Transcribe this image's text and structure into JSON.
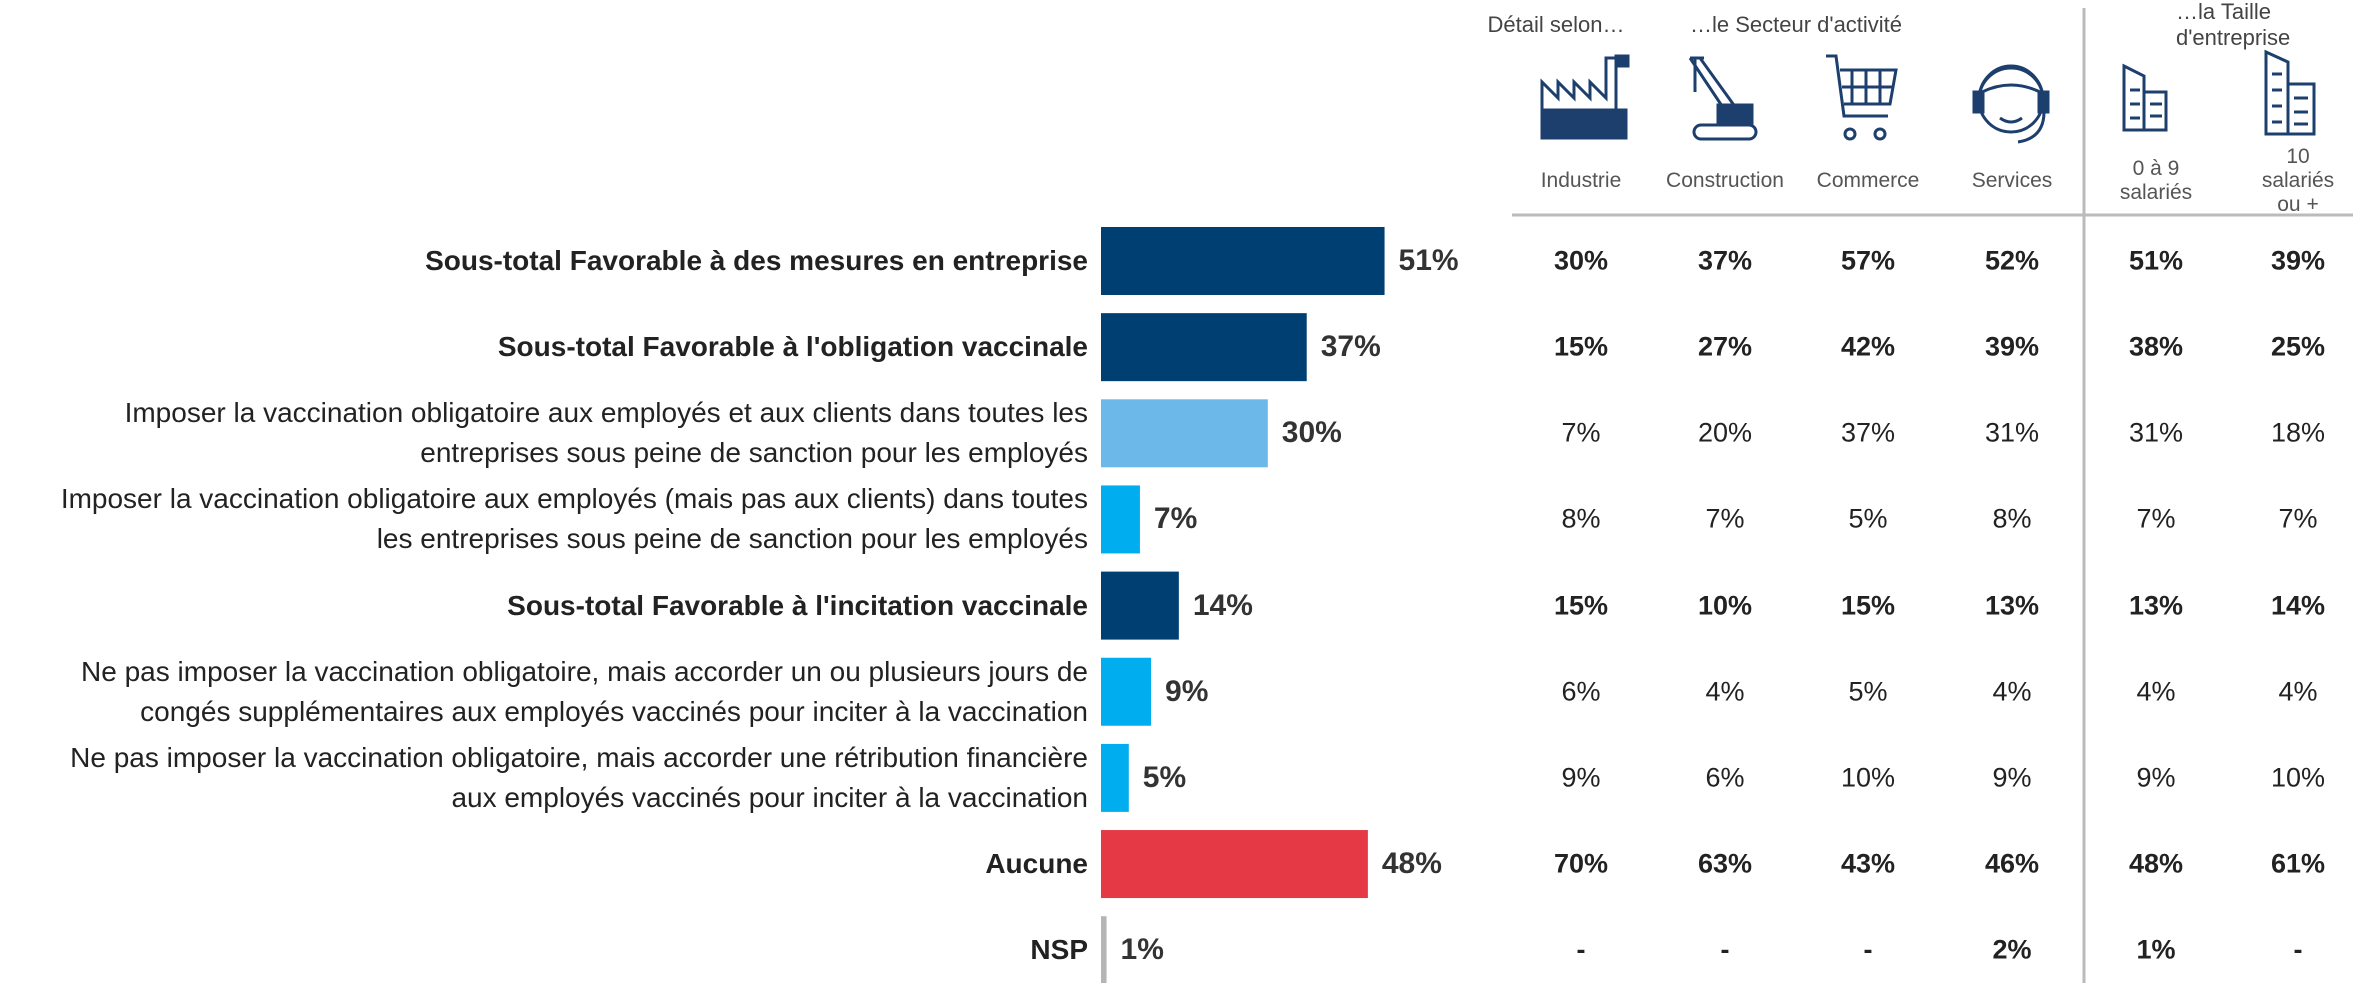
{
  "chart_data": {
    "type": "bar",
    "categories": [
      "Sous-total Favorable à des mesures en entreprise",
      "Sous-total Favorable à l'obligation vaccinale",
      "Imposer la vaccination obligatoire aux employés et aux clients dans toutes les\nentreprises sous peine de sanction pour les employés",
      "Imposer la vaccination obligatoire aux employés (mais pas aux clients) dans toutes\nles entreprises sous peine de sanction pour les employés",
      "Sous-total Favorable à l'incitation vaccinale",
      "Ne pas imposer la vaccination obligatoire, mais accorder un ou plusieurs jours de\ncongés supplémentaires aux employés vaccinés pour inciter à la vaccination",
      "Ne pas imposer la vaccination obligatoire, mais accorder une rétribution financière\naux employés vaccinés pour inciter à la vaccination",
      "Aucune",
      "NSP"
    ],
    "values": [
      51,
      37,
      30,
      7,
      14,
      9,
      5,
      48,
      1
    ],
    "value_labels": [
      "51%",
      "37%",
      "30%",
      "7%",
      "14%",
      "9%",
      "5%",
      "48%",
      "1%"
    ],
    "colors": [
      "#003f72",
      "#003f72",
      "#6cb8e8",
      "#00aeef",
      "#003f72",
      "#00aeef",
      "#00aeef",
      "#e63946",
      "#b5b5b5"
    ]
  },
  "table": {
    "groups": [
      "Détail selon…",
      "…le Secteur d'activité",
      "…la Taille d'entreprise"
    ],
    "columns": [
      "Industrie",
      "Construction",
      "Commerce",
      "Services",
      "0 à 9\nsalariés",
      "10 salariés\nou +"
    ],
    "rows": [
      [
        "30%",
        "37%",
        "57%",
        "52%",
        "51%",
        "39%"
      ],
      [
        "15%",
        "27%",
        "42%",
        "39%",
        "38%",
        "25%"
      ],
      [
        "7%",
        "20%",
        "37%",
        "31%",
        "31%",
        "18%"
      ],
      [
        "8%",
        "7%",
        "5%",
        "8%",
        "7%",
        "7%"
      ],
      [
        "15%",
        "10%",
        "15%",
        "13%",
        "13%",
        "14%"
      ],
      [
        "6%",
        "4%",
        "5%",
        "4%",
        "4%",
        "4%"
      ],
      [
        "9%",
        "6%",
        "10%",
        "9%",
        "9%",
        "10%"
      ],
      [
        "70%",
        "63%",
        "43%",
        "46%",
        "48%",
        "61%"
      ],
      [
        "-",
        "-",
        "-",
        "2%",
        "1%",
        "-"
      ]
    ]
  }
}
